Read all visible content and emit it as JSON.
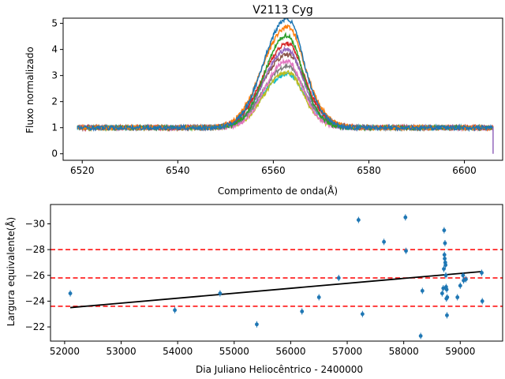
{
  "chart_data": [
    {
      "type": "line",
      "title": "V2113 Cyg",
      "xlabel": "Comprimento de onda(Å)",
      "ylabel": "Fluxo normalizado",
      "xlim": [
        6516,
        6608
      ],
      "ylim": [
        -0.25,
        5.2
      ],
      "xticks": [
        6520,
        6540,
        6560,
        6580,
        6600
      ],
      "yticks": [
        0,
        1,
        2,
        3,
        4,
        5
      ],
      "wavelength_range": [
        6519,
        6606
      ],
      "line_center": 6562.0,
      "series_colors": [
        "#1f77b4",
        "#ff7f0e",
        "#2ca02c",
        "#d62728",
        "#9467bd",
        "#8c564b",
        "#e377c2",
        "#7f7f7f",
        "#bcbd22",
        "#17becf"
      ],
      "series": [
        {
          "peak": 4.9,
          "width": 4.3
        },
        {
          "peak": 4.6,
          "width": 4.6
        },
        {
          "peak": 4.3,
          "width": 4.0
        },
        {
          "peak": 4.0,
          "width": 4.5
        },
        {
          "peak": 3.8,
          "width": 4.2
        },
        {
          "peak": 3.6,
          "width": 4.8
        },
        {
          "peak": 3.4,
          "width": 3.9
        },
        {
          "peak": 3.2,
          "width": 4.4
        },
        {
          "peak": 3.0,
          "width": 4.1
        },
        {
          "peak": 2.9,
          "width": 4.7
        }
      ],
      "grid": false,
      "legend": false
    },
    {
      "type": "scatter",
      "xlabel": "Dia Juliano Heliocêntrico - 2400000",
      "ylabel": "Largura equivalente(Å)",
      "xlim": [
        51750,
        59750
      ],
      "ylim": [
        -20.9,
        -31.5
      ],
      "y_inverted": true,
      "xticks": [
        52000,
        53000,
        54000,
        55000,
        56000,
        57000,
        58000,
        59000
      ],
      "yticks": [
        -30,
        -28,
        -26,
        -24,
        -22
      ],
      "point_color": "#1f77b4",
      "points": [
        {
          "x": 52100,
          "y": -24.6
        },
        {
          "x": 53950,
          "y": -23.3
        },
        {
          "x": 54750,
          "y": -24.6
        },
        {
          "x": 55400,
          "y": -22.2
        },
        {
          "x": 56200,
          "y": -23.2
        },
        {
          "x": 56500,
          "y": -24.3
        },
        {
          "x": 56850,
          "y": -25.8
        },
        {
          "x": 57200,
          "y": -30.3
        },
        {
          "x": 57270,
          "y": -23.0
        },
        {
          "x": 57650,
          "y": -28.6
        },
        {
          "x": 58030,
          "y": -30.5
        },
        {
          "x": 58040,
          "y": -27.9
        },
        {
          "x": 58300,
          "y": -21.3
        },
        {
          "x": 58330,
          "y": -24.8
        },
        {
          "x": 58680,
          "y": -24.6
        },
        {
          "x": 58700,
          "y": -25.0
        },
        {
          "x": 58710,
          "y": -26.5
        },
        {
          "x": 58715,
          "y": -29.5
        },
        {
          "x": 58720,
          "y": -27.6
        },
        {
          "x": 58725,
          "y": -27.3
        },
        {
          "x": 58730,
          "y": -28.5
        },
        {
          "x": 58735,
          "y": -27.0
        },
        {
          "x": 58740,
          "y": -26.8
        },
        {
          "x": 58745,
          "y": -26.0
        },
        {
          "x": 58750,
          "y": -25.1
        },
        {
          "x": 58755,
          "y": -24.2
        },
        {
          "x": 58760,
          "y": -24.9
        },
        {
          "x": 58765,
          "y": -22.9
        },
        {
          "x": 58770,
          "y": -24.3
        },
        {
          "x": 58950,
          "y": -24.3
        },
        {
          "x": 59000,
          "y": -25.2
        },
        {
          "x": 59050,
          "y": -26.0
        },
        {
          "x": 59060,
          "y": -25.6
        },
        {
          "x": 59100,
          "y": -25.7
        },
        {
          "x": 59380,
          "y": -26.2
        },
        {
          "x": 59390,
          "y": -24.0
        }
      ],
      "fit_line": {
        "x": [
          52100,
          59390
        ],
        "y": [
          -23.5,
          -26.3
        ],
        "color": "#000000"
      },
      "reference_lines": {
        "y": [
          -28.0,
          -25.8,
          -23.6
        ],
        "color": "#ff0000",
        "style": "dashed"
      },
      "grid": false,
      "legend": false
    }
  ]
}
